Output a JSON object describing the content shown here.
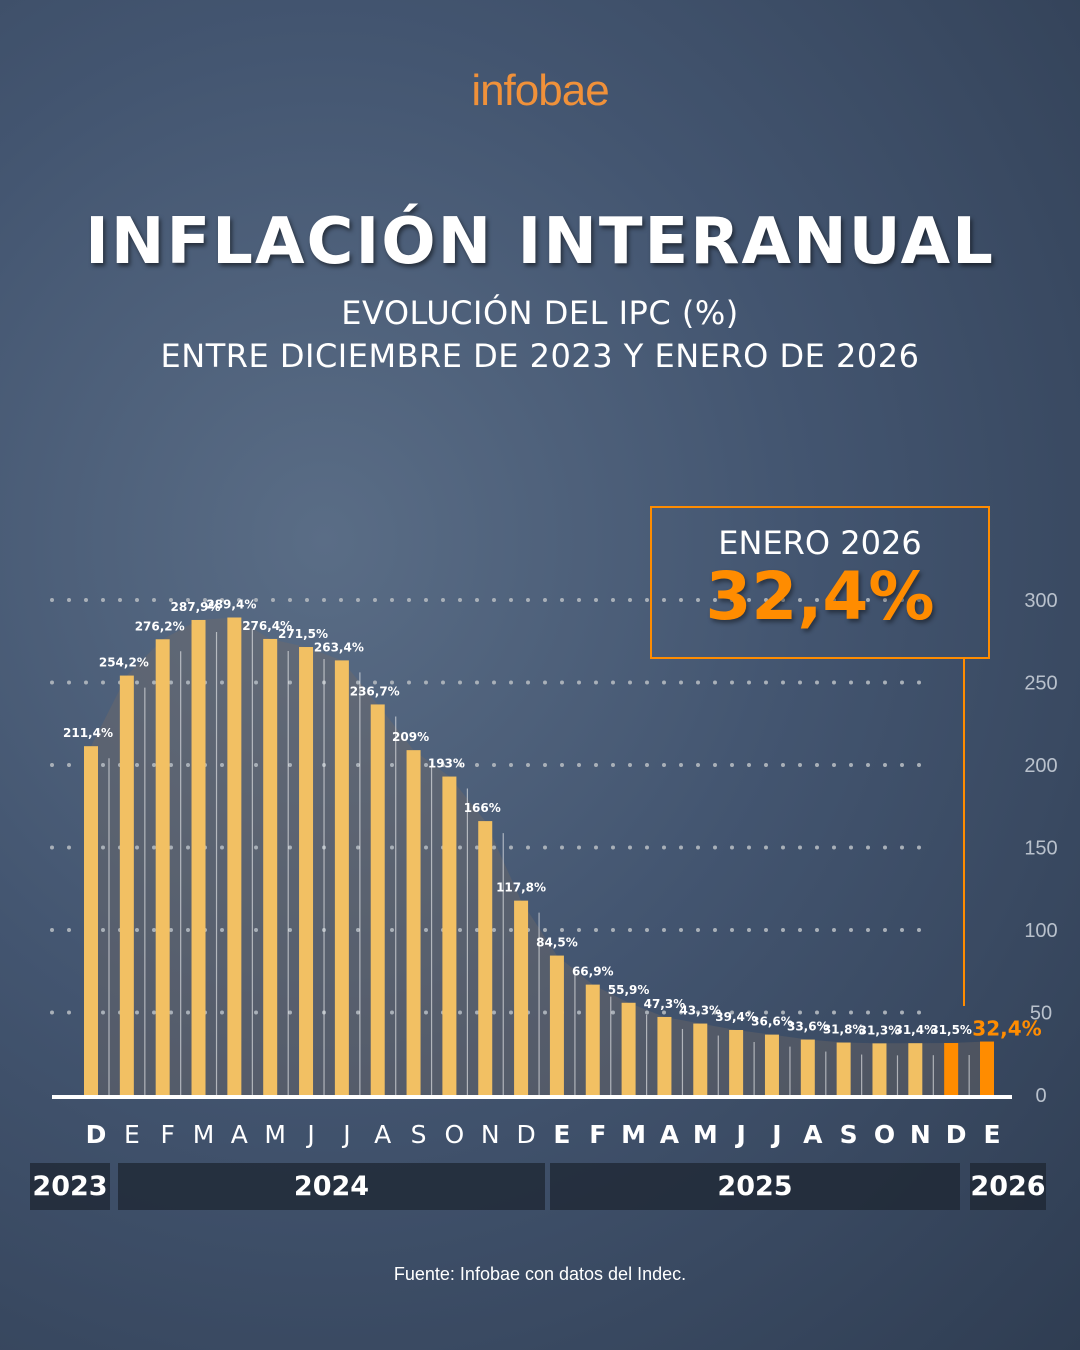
{
  "brand": "infobae",
  "title": "INFLACIÓN INTERANUAL",
  "subtitle_1": "EVOLUCIÓN DEL IPC (%)",
  "subtitle_2": "ENTRE DICIEMBRE DE 2023 Y ENERO DE 2026",
  "callout": {
    "label": "ENERO 2026",
    "value": "32,4%"
  },
  "source": "Fuente: Infobae con datos del Indec.",
  "colors": {
    "bar": "#f2c063",
    "highlight": "#ff8c00",
    "background": "#435570"
  },
  "years": [
    "2023",
    "2024",
    "2025",
    "2026"
  ],
  "chart_data": {
    "type": "bar",
    "categories": [
      "D",
      "E",
      "F",
      "M",
      "A",
      "M",
      "J",
      "J",
      "A",
      "S",
      "O",
      "N",
      "D",
      "E",
      "F",
      "M",
      "A",
      "M",
      "J",
      "J",
      "A",
      "S",
      "O",
      "N",
      "D",
      "E"
    ],
    "values": [
      211.4,
      254.2,
      276.2,
      287.9,
      289.4,
      276.4,
      271.5,
      263.4,
      236.7,
      209,
      193,
      166,
      117.8,
      84.5,
      66.9,
      55.9,
      47.3,
      43.3,
      39.4,
      36.6,
      33.6,
      31.8,
      31.3,
      31.4,
      31.5,
      32.4
    ],
    "labels": [
      "211,4%",
      "254,2%",
      "276,2%",
      "287,9%",
      "289,4%",
      "276,4%",
      "271,5%",
      "263,4%",
      "236,7%",
      "209%",
      "193%",
      "166%",
      "117,8%",
      "84,5%",
      "66,9%",
      "55,9%",
      "47,3%",
      "43,3%",
      "39,4%",
      "36,6%",
      "33,6%",
      "31,8%",
      "31,3%",
      "31,4%",
      "31,5%",
      "32,4%"
    ],
    "highlighted": [
      24,
      25
    ],
    "yticks": [
      0,
      50,
      100,
      150,
      200,
      250,
      300
    ],
    "ylim": [
      0,
      300
    ],
    "grid": true,
    "title": "INFLACIÓN INTERANUAL",
    "xlabel": "",
    "ylabel": ""
  }
}
